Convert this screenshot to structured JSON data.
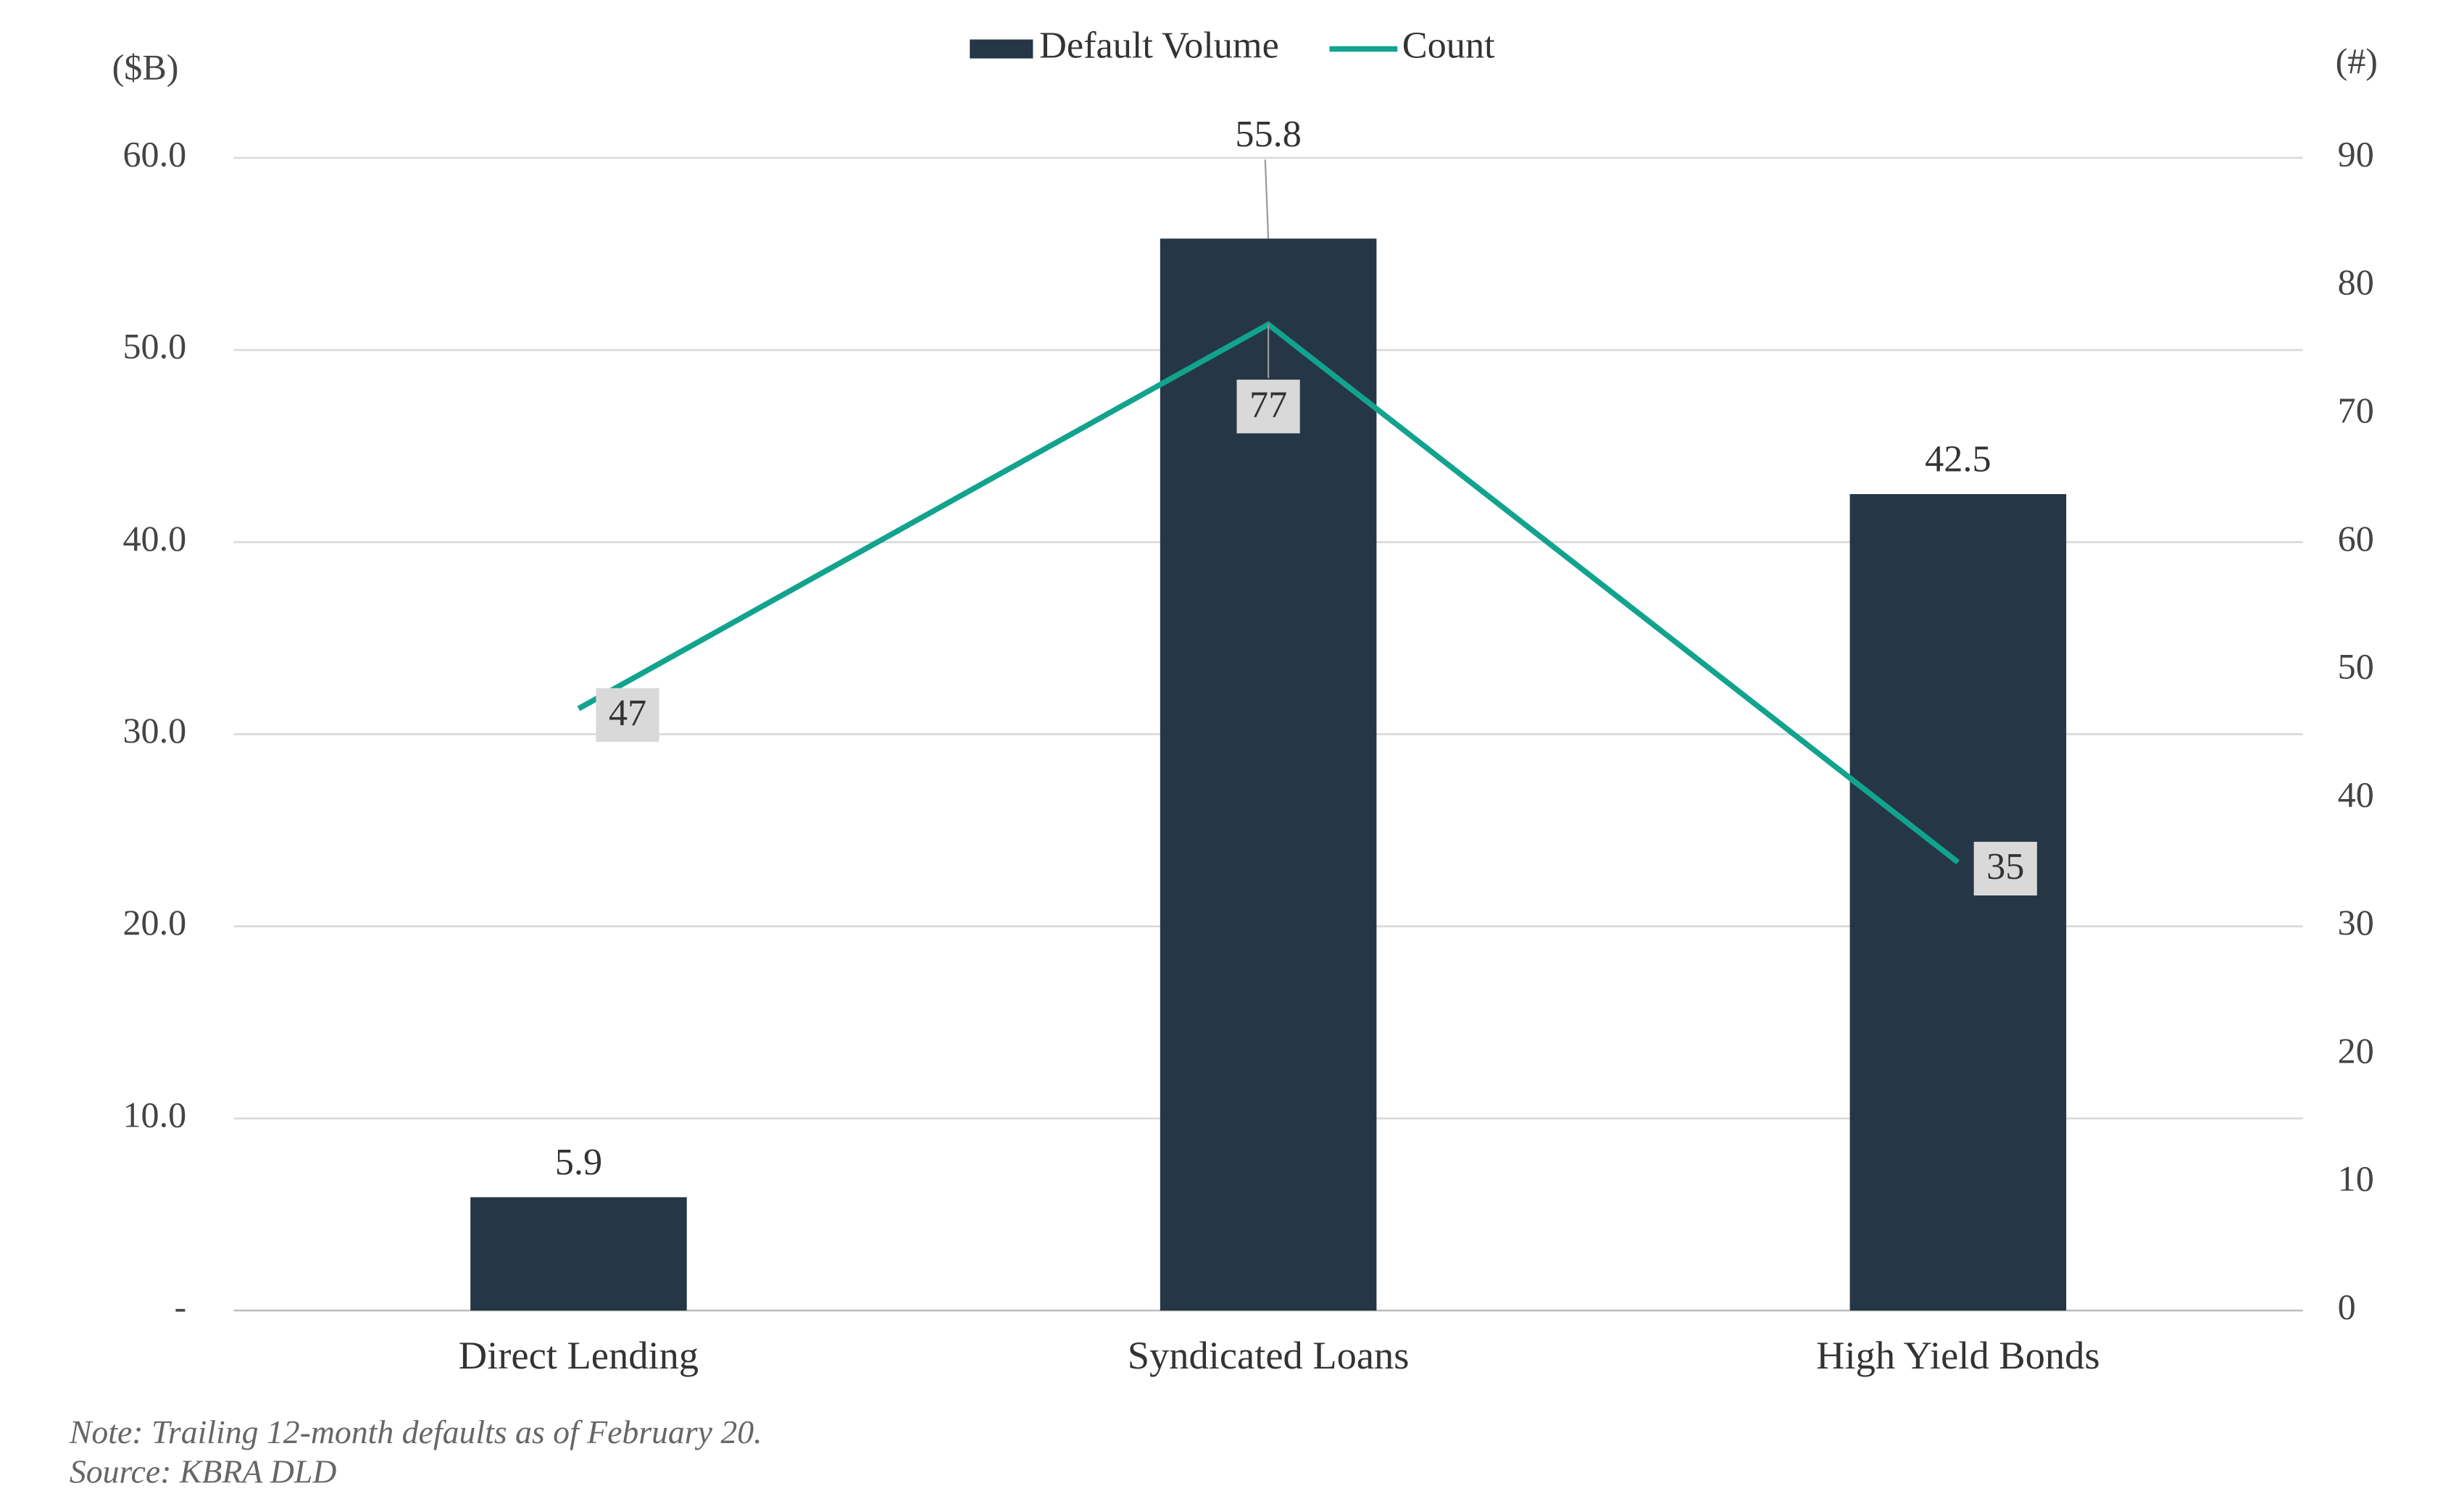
{
  "chart_data": {
    "type": "combo",
    "categories": [
      "Direct Lending",
      "Syndicated Loans",
      "High Yield Bonds"
    ],
    "series": [
      {
        "name": "Default Volume",
        "type": "bar",
        "color": "#253746",
        "values": [
          5.9,
          55.8,
          42.5
        ]
      },
      {
        "name": "Count",
        "type": "line",
        "axis": "y2",
        "color": "#12a38e",
        "values": [
          47,
          77,
          35
        ]
      }
    ],
    "y_label": "($B)",
    "y2_label": "(#)",
    "ylim": [
      0,
      60
    ],
    "yticks": [
      {
        "value": 0,
        "label": "-"
      },
      {
        "value": 10,
        "label": "10.0"
      },
      {
        "value": 20,
        "label": "20.0"
      },
      {
        "value": 30,
        "label": "30.0"
      },
      {
        "value": 40,
        "label": "40.0"
      },
      {
        "value": 50,
        "label": "50.0"
      },
      {
        "value": 60,
        "label": "60.0"
      }
    ],
    "y2lim": [
      0,
      90
    ],
    "y2ticks": [
      0,
      10,
      20,
      30,
      40,
      50,
      60,
      70,
      80,
      90
    ],
    "grid": true,
    "legend": "top",
    "note": "Note: Trailing 12-month defaults as of February 20.",
    "source": "Source: KBRA DLD"
  }
}
